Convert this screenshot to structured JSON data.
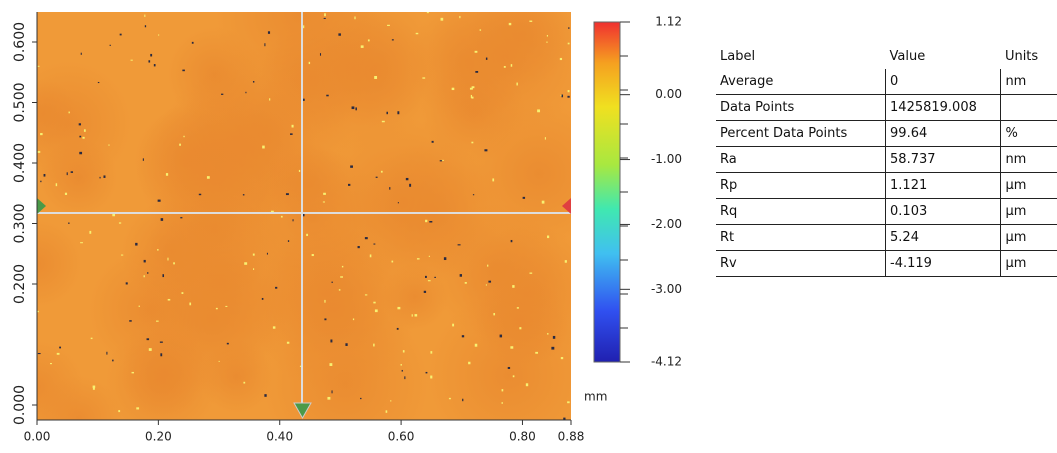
{
  "map": {
    "x_ticks": [
      {
        "value": 0,
        "label": "0.00"
      },
      {
        "value": 0.2,
        "label": "0.20"
      },
      {
        "value": 0.4,
        "label": "0.40"
      },
      {
        "value": 0.6,
        "label": "0.60"
      },
      {
        "value": 0.8,
        "label": "0.80"
      },
      {
        "value": 0.88,
        "label": "0.88"
      }
    ],
    "y_ticks": [
      {
        "value": 0,
        "label": "0.000"
      },
      {
        "value": 0.2,
        "label": "0.200"
      },
      {
        "value": 0.3,
        "label": "0.300"
      },
      {
        "value": 0.4,
        "label": "0.400"
      },
      {
        "value": 0.5,
        "label": "0.500"
      },
      {
        "value": 0.6,
        "label": "0.600"
      }
    ],
    "unit": "mm"
  },
  "colorbar": {
    "ticks": [
      1.12,
      {
        "value": 0,
        "label": "0.00"
      },
      {
        "value": -1,
        "label": "-1.00"
      },
      {
        "value": -2,
        "label": "-2.00"
      },
      {
        "value": -3,
        "label": "-3.00"
      },
      -4.12
    ]
  },
  "table": {
    "header": [
      "Label",
      "Value",
      "Units"
    ],
    "rows": [
      [
        "Average",
        "0",
        "nm"
      ],
      [
        "Data Points",
        "1425819.008",
        ""
      ],
      [
        "Percent Data Points",
        "99.64",
        "%"
      ],
      [
        "Ra",
        "58.737",
        "nm"
      ],
      [
        "Rp",
        "1.121",
        "µm"
      ],
      [
        "Rq",
        "0.103",
        "µm"
      ],
      [
        "Rt",
        "5.24",
        "µm"
      ],
      [
        "Rv",
        "-4.119",
        "µm"
      ]
    ]
  }
}
